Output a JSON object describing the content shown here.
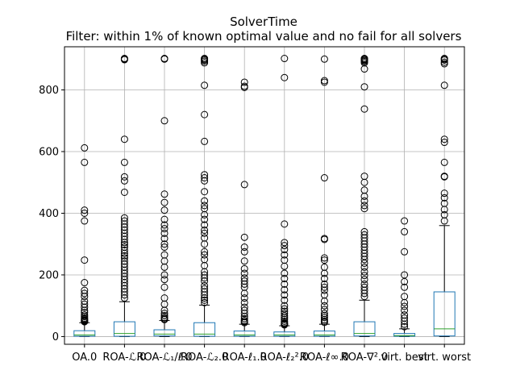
{
  "chart_data": {
    "type": "box",
    "title": "SolverTime",
    "subtitle": "Filter: within 1% of known optimal value and no fail for all solvers",
    "xlabel": "",
    "ylabel": "",
    "ylim": [
      -25,
      940
    ],
    "yticks": [
      0,
      200,
      400,
      600,
      800
    ],
    "grid": true,
    "colors": {
      "box": "#1f77b4",
      "median": "#2ca02c",
      "whisker": "#000000",
      "flier": "#000000",
      "grid": "#b0b0b0"
    },
    "categories": [
      "OA.0",
      "ROA-ℒ.0",
      "ROA-ℒ₁/ℓ.0",
      "ROA-ℒ₂.0",
      "ROA-ℓ₁.0",
      "ROA-ℓ₂².0",
      "ROA-ℓ∞.0",
      "ROA-∇².0",
      "virt. best",
      "virt. worst"
    ],
    "boxes": [
      {
        "label": "OA.0",
        "q1": 1,
        "median": 5,
        "q3": 19,
        "whisker_low": 0,
        "whisker_high": 45,
        "outliers": [
          612,
          565,
          410,
          400,
          375,
          248,
          175,
          150,
          140,
          130,
          115,
          105,
          95,
          85,
          78,
          70,
          65,
          60,
          57,
          54,
          52,
          50,
          48
        ]
      },
      {
        "label": "ROA-ℒ.0",
        "q1": 1,
        "median": 10,
        "q3": 48,
        "whisker_low": 0,
        "whisker_high": 113,
        "outliers": [
          902,
          900,
          898,
          640,
          565,
          518,
          505,
          468,
          385,
          375,
          365,
          355,
          345,
          335,
          325,
          315,
          305,
          298,
          290,
          280,
          270,
          262,
          255,
          245,
          235,
          225,
          215,
          205,
          195,
          185,
          175,
          165,
          155,
          145,
          135,
          125
        ]
      },
      {
        "label": "ROA-ℒ₁/ℓ.0",
        "q1": 2,
        "median": 8,
        "q3": 22,
        "whisker_low": 0,
        "whisker_high": 52,
        "outliers": [
          902,
          900,
          700,
          462,
          435,
          410,
          380,
          362,
          350,
          335,
          318,
          300,
          290,
          265,
          245,
          225,
          200,
          185,
          160,
          125,
          105,
          85,
          75,
          68,
          62,
          58,
          55
        ]
      },
      {
        "label": "ROA-ℒ₂.0",
        "q1": 1,
        "median": 8,
        "q3": 45,
        "whisker_low": 0,
        "whisker_high": 102,
        "outliers": [
          902,
          900,
          897,
          893,
          888,
          815,
          720,
          633,
          525,
          515,
          505,
          470,
          440,
          425,
          415,
          395,
          380,
          362,
          345,
          335,
          320,
          300,
          275,
          265,
          250,
          230,
          210,
          200,
          190,
          180,
          165,
          155,
          145,
          135,
          125,
          118,
          110
        ]
      },
      {
        "label": "ROA-ℓ₁.0",
        "q1": 1,
        "median": 5,
        "q3": 18,
        "whisker_low": 0,
        "whisker_high": 40,
        "outliers": [
          825,
          812,
          808,
          493,
          322,
          290,
          275,
          245,
          220,
          205,
          190,
          180,
          170,
          160,
          140,
          125,
          110,
          95,
          85,
          75,
          65,
          58,
          52,
          48,
          45
        ]
      },
      {
        "label": "ROA-ℓ₂².0",
        "q1": 1,
        "median": 5,
        "q3": 15,
        "whisker_low": 0,
        "whisker_high": 35,
        "outliers": [
          902,
          840,
          365,
          305,
          295,
          282,
          265,
          248,
          228,
          205,
          188,
          170,
          152,
          135,
          118,
          100,
          90,
          82,
          75,
          68,
          62,
          56,
          50,
          45,
          42,
          40,
          38
        ]
      },
      {
        "label": "ROA-ℓ∞.0",
        "q1": 1,
        "median": 5,
        "q3": 18,
        "whisker_low": 0,
        "whisker_high": 40,
        "outliers": [
          900,
          830,
          825,
          515,
          318,
          315,
          255,
          248,
          225,
          205,
          188,
          170,
          160,
          150,
          135,
          115,
          100,
          88,
          75,
          68,
          62,
          55,
          50,
          46
        ]
      },
      {
        "label": "ROA-∇².0",
        "q1": 2,
        "median": 10,
        "q3": 48,
        "whisker_low": 0,
        "whisker_high": 118,
        "outliers": [
          902,
          900,
          898,
          895,
          892,
          888,
          868,
          810,
          738,
          520,
          500,
          475,
          455,
          440,
          425,
          415,
          340,
          330,
          320,
          310,
          300,
          290,
          280,
          270,
          260,
          250,
          238,
          225,
          210,
          198,
          185,
          170,
          160,
          150,
          140,
          130
        ]
      },
      {
        "label": "virt. best",
        "q1": 1,
        "median": 3,
        "q3": 10,
        "whisker_low": 0,
        "whisker_high": 25,
        "outliers": [
          375,
          340,
          275,
          200,
          178,
          160,
          130,
          110,
          98,
          85,
          70,
          60,
          50,
          40,
          32
        ]
      },
      {
        "label": "virt. worst",
        "q1": 2,
        "median": 25,
        "q3": 145,
        "whisker_low": 0,
        "whisker_high": 360,
        "outliers": [
          902,
          900,
          897,
          890,
          885,
          815,
          640,
          630,
          565,
          520,
          518,
          465,
          450,
          432,
          412,
          395,
          375
        ]
      }
    ]
  }
}
